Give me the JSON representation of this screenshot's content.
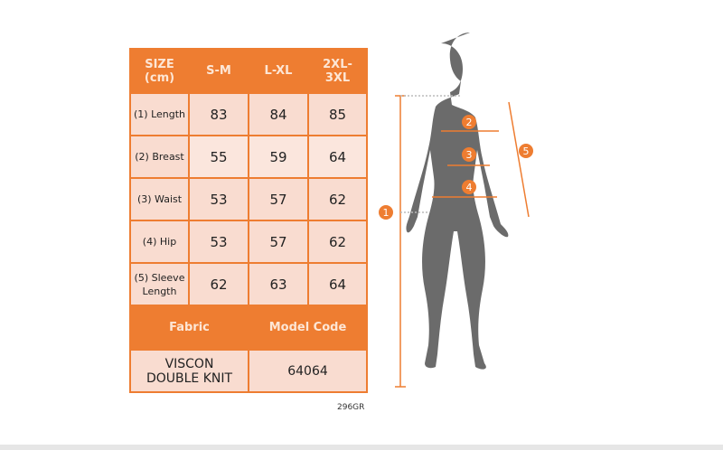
{
  "table": {
    "header": [
      "SIZE (cm)",
      "S-M",
      "L-XL",
      "2XL-3XL"
    ],
    "rows": [
      {
        "label": "(1) Length",
        "values": [
          "83",
          "84",
          "85"
        ]
      },
      {
        "label": "(2) Breast",
        "values": [
          "55",
          "59",
          "64"
        ]
      },
      {
        "label": "(3) Waist",
        "values": [
          "53",
          "57",
          "62"
        ]
      },
      {
        "label": "(4) Hip",
        "values": [
          "53",
          "57",
          "62"
        ]
      },
      {
        "label": "(5) Sleeve Length",
        "values": [
          "62",
          "63",
          "64"
        ]
      }
    ],
    "fabric_label": "Fabric",
    "model_code_label": "Model Code",
    "fabric": "VISCON DOUBLE KNIT",
    "model_code": "64064"
  },
  "image_code": "296GR",
  "markers": [
    "1",
    "2",
    "3",
    "4",
    "5"
  ],
  "colors": {
    "accent": "#ee7d31",
    "cell": "#f9dcd0",
    "silhouette": "#6b6b6b"
  }
}
